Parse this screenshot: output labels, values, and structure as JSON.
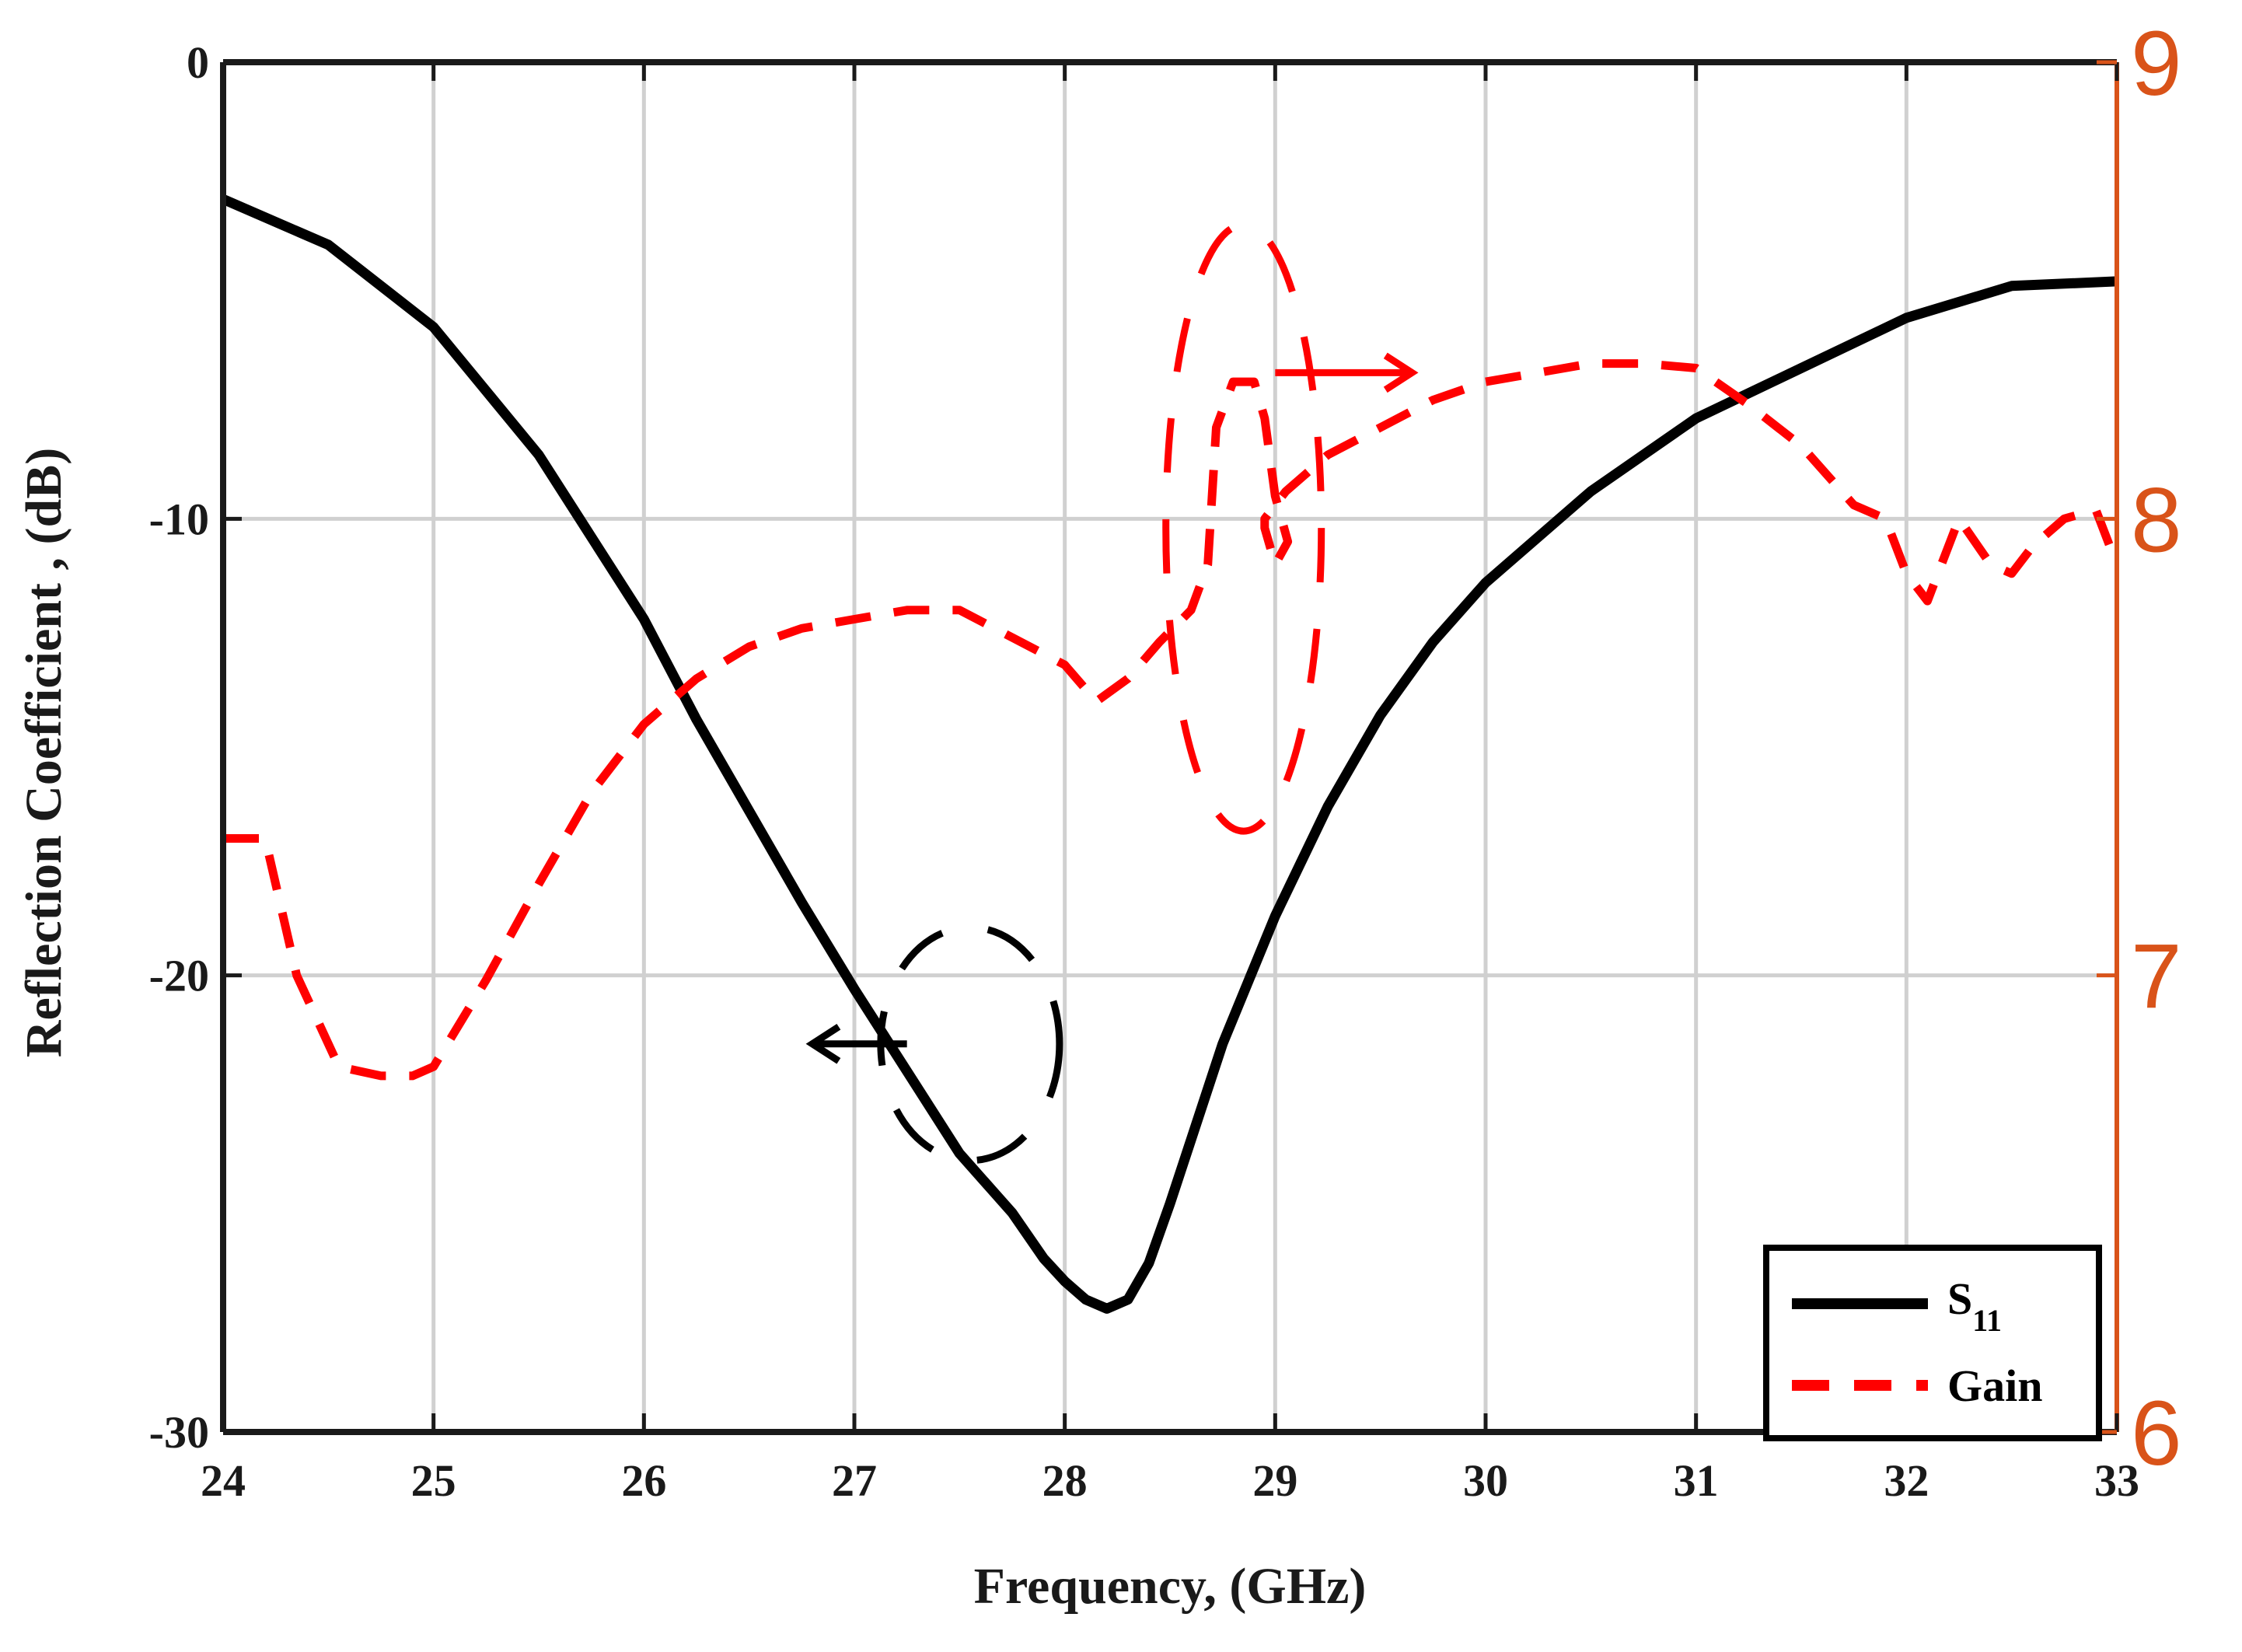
{
  "chart_data": {
    "type": "line",
    "title": "",
    "xlabel": "Frequency, (GHz)",
    "ylabel": "Reflection Coefficient , (dB)",
    "y2label": "",
    "xlim": [
      24,
      33
    ],
    "ylim": [
      -30,
      0
    ],
    "y2lim": [
      6,
      9
    ],
    "x_ticks": [
      "24",
      "25",
      "26",
      "27",
      "28",
      "29",
      "30",
      "31",
      "32",
      "33"
    ],
    "y_ticks": [
      "0",
      "-10",
      "-20",
      "-30"
    ],
    "y2_ticks": [
      "9",
      "8",
      "7",
      "6"
    ],
    "grid": true,
    "legend": {
      "placement": "bottom-right",
      "entries": [
        "S11",
        "Gain"
      ],
      "s11_main": "S",
      "s11_sub": "11",
      "gain": "Gain"
    },
    "colors": {
      "s11": "#000000",
      "gain": "#ff0000",
      "right_axis": "#d95319",
      "grid": "#d0d0d0",
      "axis": "#1a1a1a"
    },
    "series": [
      {
        "name": "S11",
        "axis": "left",
        "style": "solid",
        "x": [
          24.0,
          24.5,
          25.0,
          25.5,
          26.0,
          26.25,
          26.5,
          26.75,
          27.0,
          27.25,
          27.5,
          27.75,
          27.9,
          28.0,
          28.1,
          28.2,
          28.3,
          28.4,
          28.5,
          28.6,
          28.75,
          29.0,
          29.25,
          29.5,
          29.75,
          30.0,
          30.5,
          31.0,
          31.5,
          32.0,
          32.5,
          33.0
        ],
        "y": [
          -3.0,
          -4.0,
          -5.8,
          -8.6,
          -12.2,
          -14.4,
          -16.4,
          -18.4,
          -20.3,
          -22.1,
          -23.9,
          -25.2,
          -26.2,
          -26.7,
          -27.1,
          -27.3,
          -27.1,
          -26.3,
          -25.0,
          -23.6,
          -21.5,
          -18.7,
          -16.3,
          -14.3,
          -12.7,
          -11.4,
          -9.4,
          -7.8,
          -6.7,
          -5.6,
          -4.9,
          -4.8
        ]
      },
      {
        "name": "Gain",
        "axis": "right",
        "style": "dashed",
        "x": [
          24.0,
          24.2,
          24.35,
          24.55,
          24.75,
          24.9,
          25.0,
          25.25,
          25.5,
          25.75,
          26.0,
          26.25,
          26.5,
          26.75,
          27.0,
          27.25,
          27.5,
          27.75,
          28.0,
          28.15,
          28.3,
          28.45,
          28.6,
          28.68,
          28.72,
          28.8,
          28.9,
          28.95,
          29.0,
          29.06,
          29.0,
          28.95,
          28.95,
          29.05,
          29.25,
          29.5,
          29.75,
          30.0,
          30.25,
          30.5,
          30.75,
          31.0,
          31.25,
          31.5,
          31.75,
          31.9,
          32.0,
          32.1,
          32.15,
          32.25,
          32.4,
          32.5,
          32.6,
          32.75,
          32.9,
          33.0
        ],
        "y": [
          7.3,
          7.3,
          7.0,
          6.8,
          6.78,
          6.78,
          6.8,
          6.99,
          7.2,
          7.4,
          7.55,
          7.65,
          7.72,
          7.76,
          7.78,
          7.8,
          7.8,
          7.74,
          7.68,
          7.6,
          7.65,
          7.73,
          7.8,
          7.9,
          8.2,
          8.3,
          8.3,
          8.22,
          8.05,
          7.95,
          7.9,
          7.98,
          8.0,
          8.06,
          8.14,
          8.2,
          8.26,
          8.3,
          8.32,
          8.34,
          8.34,
          8.33,
          8.25,
          8.16,
          8.03,
          8.0,
          7.88,
          7.82,
          7.88,
          8.0,
          7.9,
          7.88,
          7.94,
          8.0,
          8.02,
          7.9
        ]
      }
    ],
    "annotations": [
      {
        "type": "arrow",
        "direction": "left",
        "target_axis": "left",
        "x_start": 27.25,
        "x_end": 26.8,
        "y": -21.5
      },
      {
        "type": "arrow",
        "direction": "right",
        "target_axis": "right",
        "x_start": 29.0,
        "x_end": 29.65,
        "y": 8.32
      }
    ]
  }
}
